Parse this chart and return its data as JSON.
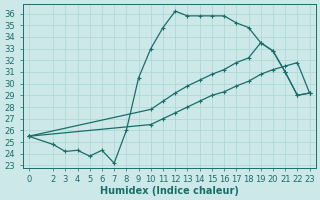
{
  "xlabel": "Humidex (Indice chaleur)",
  "bg_color": "#cce8e8",
  "grid_color": "#b0d8d8",
  "line_color": "#1a6e6a",
  "xlim": [
    -0.5,
    23.5
  ],
  "ylim": [
    22.8,
    36.8
  ],
  "xticks": [
    0,
    2,
    3,
    4,
    5,
    6,
    7,
    8,
    9,
    10,
    11,
    12,
    13,
    14,
    15,
    16,
    17,
    18,
    19,
    20,
    21,
    22,
    23
  ],
  "yticks": [
    23,
    24,
    25,
    26,
    27,
    28,
    29,
    30,
    31,
    32,
    33,
    34,
    35,
    36
  ],
  "line1_x": [
    0,
    2,
    3,
    4,
    5,
    6,
    7,
    8,
    9,
    10,
    11,
    12,
    13,
    14,
    15,
    16,
    17,
    18,
    19,
    20,
    21,
    22,
    23
  ],
  "line1_y": [
    25.5,
    24.8,
    24.2,
    24.3,
    23.8,
    24.3,
    23.2,
    26.0,
    30.5,
    33.0,
    34.8,
    36.2,
    35.8,
    35.8,
    35.8,
    35.8,
    35.2,
    34.8,
    33.5,
    32.8,
    31.0,
    29.0,
    29.2
  ],
  "line2_x": [
    0,
    10,
    11,
    12,
    13,
    14,
    15,
    16,
    17,
    18,
    19,
    20,
    21,
    22,
    23
  ],
  "line2_y": [
    25.5,
    27.8,
    28.5,
    29.2,
    29.8,
    30.3,
    30.8,
    31.2,
    31.8,
    32.2,
    33.5,
    32.8,
    31.0,
    29.0,
    29.2
  ],
  "line3_x": [
    0,
    10,
    11,
    12,
    13,
    14,
    15,
    16,
    17,
    18,
    19,
    20,
    21,
    22,
    23
  ],
  "line3_y": [
    25.5,
    26.5,
    27.0,
    27.5,
    28.0,
    28.5,
    29.0,
    29.3,
    29.8,
    30.2,
    30.8,
    31.2,
    31.5,
    31.8,
    29.2
  ],
  "font_size": 6
}
